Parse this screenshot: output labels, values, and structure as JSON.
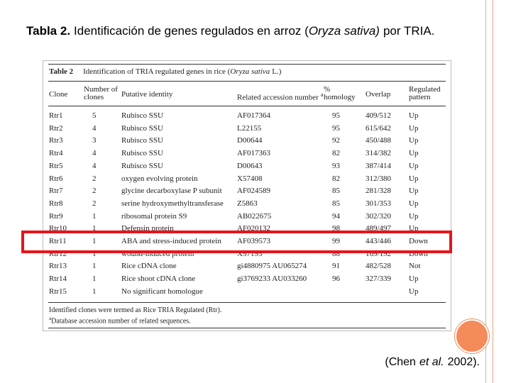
{
  "slide": {
    "title": {
      "label": "Tabla 2.",
      "text": "Identificación de genes regulados en arroz (",
      "species": "Oryza sativa)",
      "end": "por TRIA."
    },
    "citation": {
      "start": "(Chen",
      "italic": "et al.",
      "end": "2002)."
    }
  },
  "table": {
    "caption": {
      "label": "Table 2",
      "text": "Identification of TRIA regulated genes in rice (",
      "species": "Oryza sativa",
      "end": "L.)"
    },
    "headers": {
      "clone": "Clone",
      "number": "Number of clones",
      "identity": "Putative identity",
      "accession": "Related accession number",
      "accession_note": "a",
      "homology": "% homology",
      "overlap": "Overlap",
      "pattern": "Regulated pattern"
    },
    "rows": [
      {
        "clone": "Rtr1",
        "number": 5,
        "identity": "Rubisco SSU",
        "accession": "AF017364",
        "homology": 95,
        "overlap": "409/512",
        "pattern": "Up"
      },
      {
        "clone": "Rtr2",
        "number": 4,
        "identity": "Rubisco SSU",
        "accession": "L22155",
        "homology": 95,
        "overlap": "615/642",
        "pattern": "Up"
      },
      {
        "clone": "Rtr3",
        "number": 3,
        "identity": "Rubisco SSU",
        "accession": "D00644",
        "homology": 92,
        "overlap": "450/488",
        "pattern": "Up"
      },
      {
        "clone": "Rtr4",
        "number": 4,
        "identity": "Rubisco SSU",
        "accession": "AF017363",
        "homology": 82,
        "overlap": "314/382",
        "pattern": "Up"
      },
      {
        "clone": "Rtr5",
        "number": 4,
        "identity": "Rubisco SSU",
        "accession": "D00643",
        "homology": 93,
        "overlap": "387/414",
        "pattern": "Up"
      },
      {
        "clone": "Rtr6",
        "number": 2,
        "identity": "oxygen evolving protein",
        "accession": "X57408",
        "homology": 82,
        "overlap": "312/380",
        "pattern": "Up"
      },
      {
        "clone": "Rtr7",
        "number": 2,
        "identity": "glycine decarboxylase P subunit",
        "accession": "AF024589",
        "homology": 85,
        "overlap": "281/328",
        "pattern": "Up"
      },
      {
        "clone": "Rtr8",
        "number": 2,
        "identity": "serine hydroxymethyltransferase",
        "accession": "Z5863",
        "homology": 85,
        "overlap": "301/353",
        "pattern": "Up"
      },
      {
        "clone": "Rtr9",
        "number": 1,
        "identity": "ribosomal protein S9",
        "accession": "AB022675",
        "homology": 94,
        "overlap": "302/320",
        "pattern": "Up"
      },
      {
        "clone": "Rtr10",
        "number": 1,
        "identity": "Defensin protein",
        "accession": "AF020132",
        "homology": 98,
        "overlap": "489/497",
        "pattern": "Up"
      },
      {
        "clone": "Rtr11",
        "number": 1,
        "identity": "ABA and stress-induced protein",
        "accession": "AF039573",
        "homology": 99,
        "overlap": "443/446",
        "pattern": "Down"
      },
      {
        "clone": "Rtr12",
        "number": 1,
        "identity": "wound-induced protein",
        "accession": "X57193",
        "homology": 88,
        "overlap": "169/192",
        "pattern": "Down"
      },
      {
        "clone": "Rtr13",
        "number": 1,
        "identity": "Rice cDNA clone",
        "accession": "gi4880975 AU065274",
        "homology": 91,
        "overlap": "482/528",
        "pattern": "Not"
      },
      {
        "clone": "Rtr14",
        "number": 1,
        "identity": "Rice shoot cDNA clone",
        "accession": "gi3769233 AU033260",
        "homology": 96,
        "overlap": "327/339",
        "pattern": "Up"
      },
      {
        "clone": "Rtr15",
        "number": 1,
        "identity": "No significant homologue",
        "pattern": "Up"
      }
    ],
    "notes": [
      "Identified clones were termed as Rice TRIA Regulated (Rtr).",
      "Database accession number of related sequences."
    ],
    "note_mark": "a"
  }
}
